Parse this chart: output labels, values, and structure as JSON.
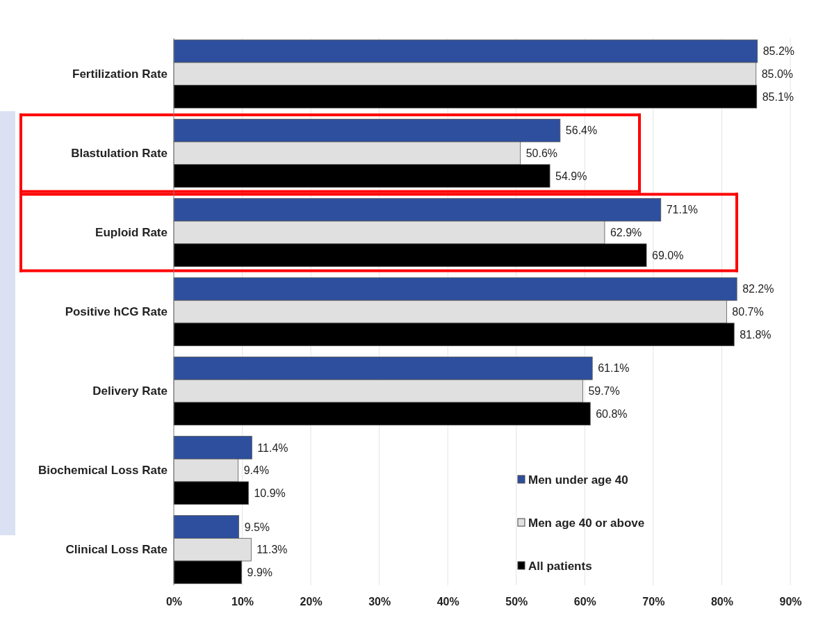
{
  "chart_data": {
    "type": "bar",
    "orientation": "horizontal",
    "categories": [
      "Fertilization Rate",
      "Blastulation Rate",
      "Euploid Rate",
      "Positive hCG Rate",
      "Delivery Rate",
      "Biochemical Loss Rate",
      "Clinical Loss Rate"
    ],
    "series": [
      {
        "name": "Men under age 40",
        "color": "#2e4f9e",
        "values": [
          85.2,
          56.4,
          71.1,
          82.2,
          61.1,
          11.4,
          9.5
        ],
        "value_labels": [
          "85.2%",
          "56.4%",
          "71.1%",
          "82.2%",
          "61.1%",
          "11.4%",
          "9.5%"
        ]
      },
      {
        "name": "Men age 40 or above",
        "color": "#e0e0e0",
        "values": [
          85.0,
          50.6,
          62.9,
          80.7,
          59.7,
          9.4,
          11.3
        ],
        "value_labels": [
          "85.0%",
          "50.6%",
          "62.9%",
          "80.7%",
          "59.7%",
          "9.4%",
          "11.3%"
        ]
      },
      {
        "name": "All patients",
        "color": "#000000",
        "values": [
          85.1,
          54.9,
          69.0,
          81.8,
          60.8,
          10.9,
          9.9
        ],
        "value_labels": [
          "85.1%",
          "54.9%",
          "69.0%",
          "81.8%",
          "60.8%",
          "10.9%",
          "9.9%"
        ]
      }
    ],
    "xlim": [
      0,
      90
    ],
    "xticks": [
      {
        "value": 0,
        "label": "0%"
      },
      {
        "value": 10,
        "label": "10%"
      },
      {
        "value": 20,
        "label": "20%"
      },
      {
        "value": 30,
        "label": "30%"
      },
      {
        "value": 40,
        "label": "40%"
      },
      {
        "value": 50,
        "label": "50%"
      },
      {
        "value": 60,
        "label": "60%"
      },
      {
        "value": 70,
        "label": "70%"
      },
      {
        "value": 80,
        "label": "80%"
      },
      {
        "value": 90,
        "label": "90%"
      }
    ],
    "grid": "x",
    "legend": "bottom right"
  }
}
